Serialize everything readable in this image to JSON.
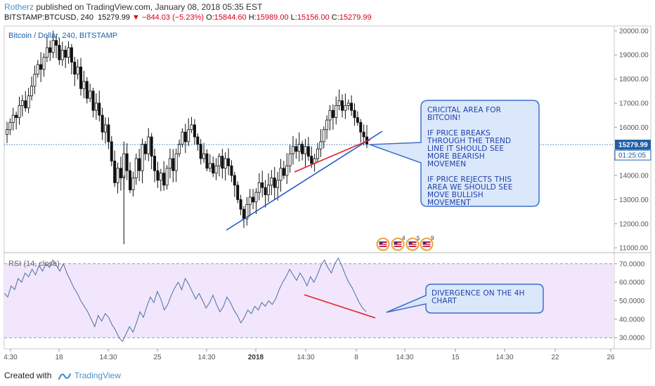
{
  "header": {
    "author": "Rotherz",
    "published": "published on TradingView.com, January 08, 2018 05:35 EST",
    "symbol": "BITSTAMP:BTCUSD, 240",
    "last": "15279.99",
    "change": "−844.03 (−5.23%)",
    "open_label": "O:",
    "open": "15844.60",
    "high_label": "H:",
    "high": "15989.00",
    "low_label": "L:",
    "low": "15156.00",
    "close_label": "C:",
    "close": "15279.99"
  },
  "main_pane": {
    "title": "Bitcoin / Dollar, 240, BITSTAMP",
    "price_labels": [
      "20000.00",
      "19000.00",
      "18000.00",
      "17000.00",
      "16000.00",
      "15000.00",
      "14000.00",
      "13000.00",
      "12000.00",
      "11000.00"
    ],
    "price_values": [
      20000,
      19000,
      18000,
      17000,
      16000,
      15000,
      14000,
      13000,
      12000,
      11000
    ],
    "last_price_tag": "15279.99",
    "countdown_tag": "01:25:05",
    "event_icons": [
      {
        "name": "us-flag-event",
        "count": ""
      },
      {
        "name": "us-flag-event",
        "count": "4"
      },
      {
        "name": "us-flag-event",
        "count": "5"
      },
      {
        "name": "us-flag-event",
        "count": "9"
      }
    ]
  },
  "rsi_pane": {
    "title": "RSI (14, close)",
    "labels": [
      "70.0000",
      "60.0000",
      "50.0000",
      "40.0000",
      "30.0000"
    ],
    "values": [
      70,
      60,
      50,
      40,
      30
    ]
  },
  "time_axis": {
    "labels": [
      "4:30",
      "18",
      "14:30",
      "25",
      "14:30",
      "2018",
      "14:30",
      "8",
      "14:30",
      "15",
      "14:30",
      "22",
      "26"
    ]
  },
  "annotations": {
    "callout_main": "CRICITAL AREA FOR\nBITCOIN!\n\nIF PRICE BREAKS\nTHROUGH THE TREND\nLINE IT SHOULD SEE\nMORE BEARISH\nMOVEMEN\n\nIF PRICE REJECTS THIS\nAREA WE SHOULD SEE\nMOVE BULLISH\nMOVEMENT",
    "callout_rsi": "DIVERGENCE ON THE 4H\nCHART"
  },
  "colors": {
    "candle": "#111111",
    "trendline_blue": "#1e5cc8",
    "trendline_red": "#e0202a",
    "rsi_line": "#4a6fa5",
    "rsi_band": "#f1e6fb",
    "callout_fill": "#dbe8fb",
    "callout_border": "#3d6fcc",
    "price_tag": "#1e5fa8"
  },
  "footer": {
    "created_with": "Created with",
    "brand": "TradingView"
  },
  "chart_data": {
    "type": "candlestick",
    "title": "Bitcoin / Dollar, 240, BITSTAMP",
    "ylim": [
      10800,
      20200
    ],
    "x_ticks": [
      "4:30",
      "18",
      "14:30",
      "25",
      "14:30",
      "2018",
      "14:30",
      "8",
      "14:30",
      "15",
      "14:30",
      "22",
      "26"
    ],
    "close_path": [
      15900,
      16200,
      16500,
      16400,
      16900,
      17100,
      16800,
      17300,
      17700,
      18200,
      18600,
      18400,
      18900,
      19300,
      19100,
      19600,
      19400,
      18800,
      19200,
      18900,
      19300,
      18700,
      18200,
      18500,
      17600,
      17900,
      17200,
      17500,
      16700,
      17000,
      16500,
      15800,
      16100,
      15400,
      14600,
      13700,
      14300,
      13900,
      14900,
      14200,
      13400,
      13900,
      14700,
      14200,
      15300,
      14900,
      15600,
      14800,
      14200,
      13800,
      14100,
      13600,
      14300,
      14700,
      14200,
      14900,
      15300,
      15800,
      15400,
      15900,
      16100,
      15600,
      15300,
      14700,
      14900,
      14300,
      14500,
      14100,
      14400,
      14800,
      14300,
      14700,
      14400,
      14000,
      13600,
      13000,
      12600,
      12200,
      12800,
      13100,
      12900,
      13300,
      13700,
      13500,
      13200,
      13600,
      13900,
      13500,
      13800,
      14300,
      14000,
      14400,
      14900,
      15200,
      15000,
      15300,
      14900,
      15200,
      14800,
      14500,
      14700,
      15100,
      15400,
      15900,
      16300,
      16700,
      16400,
      16900,
      17100,
      16700,
      16900,
      17000,
      16700,
      16400,
      16200,
      15800,
      15600,
      15300
    ],
    "last": 15279.99,
    "series": [
      {
        "name": "RSI (14, close)",
        "values": [
          54,
          52,
          58,
          56,
          62,
          60,
          65,
          63,
          67,
          64,
          69,
          66,
          70,
          68,
          72,
          69,
          66,
          70,
          65,
          61,
          57,
          54,
          50,
          47,
          44,
          40,
          36,
          42,
          39,
          43,
          41,
          37,
          34,
          30,
          28,
          32,
          36,
          33,
          38,
          44,
          41,
          47,
          52,
          49,
          55,
          51,
          45,
          48,
          53,
          57,
          60,
          56,
          62,
          59,
          55,
          51,
          54,
          50,
          46,
          49,
          53,
          48,
          44,
          47,
          52,
          49,
          45,
          42,
          38,
          41,
          45,
          43,
          47,
          45,
          49,
          47,
          50,
          48,
          51,
          56,
          60,
          63,
          67,
          64,
          61,
          65,
          62,
          58,
          63,
          60,
          64,
          69,
          72,
          68,
          65,
          70,
          73,
          69,
          64,
          60,
          57,
          53,
          49,
          46,
          44
        ]
      }
    ],
    "rsi_ylim": [
      24,
      76
    ],
    "rsi_band": [
      30,
      70
    ]
  }
}
